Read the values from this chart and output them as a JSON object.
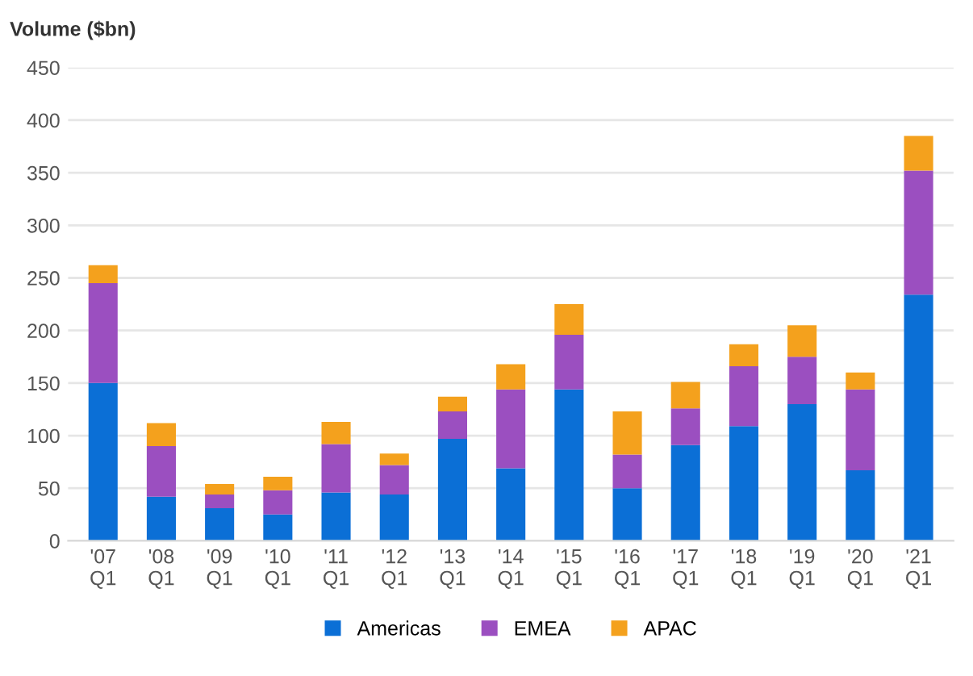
{
  "chart_data": {
    "type": "bar",
    "stacked": true,
    "ylabel": "Volume ($bn)",
    "categories": [
      "'07\nQ1",
      "'08\nQ1",
      "'09\nQ1",
      "'10\nQ1",
      "'11\nQ1",
      "'12\nQ1",
      "'13\nQ1",
      "'14\nQ1",
      "'15\nQ1",
      "'16\nQ1",
      "'17\nQ1",
      "'18\nQ1",
      "'19\nQ1",
      "'20\nQ1",
      "'21\nQ1"
    ],
    "series": [
      {
        "name": "Americas",
        "color": "#0b6fd6",
        "values": [
          150,
          42,
          31,
          25,
          46,
          44,
          97,
          69,
          144,
          50,
          91,
          109,
          130,
          67,
          234
        ]
      },
      {
        "name": "EMEA",
        "color": "#9b4fc0",
        "values": [
          95,
          48,
          13,
          23,
          46,
          28,
          26,
          75,
          52,
          32,
          35,
          57,
          45,
          77,
          118
        ]
      },
      {
        "name": "APAC",
        "color": "#f4a11d",
        "values": [
          17,
          22,
          10,
          13,
          21,
          11,
          14,
          24,
          29,
          41,
          25,
          21,
          30,
          16,
          33
        ]
      }
    ],
    "ylim": [
      0,
      450
    ],
    "yticks": [
      0,
      50,
      100,
      150,
      200,
      250,
      300,
      350,
      400,
      450
    ],
    "grid": "y",
    "legend": "bottom"
  }
}
